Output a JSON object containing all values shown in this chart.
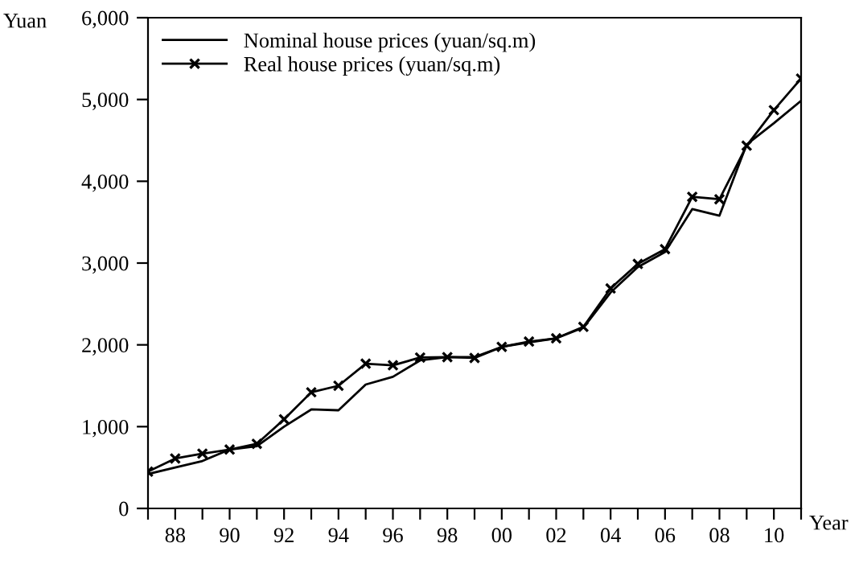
{
  "chart_data": {
    "type": "line",
    "xlabel": "Year",
    "ylabel": "Yuan",
    "x": [
      1987,
      1988,
      1989,
      1990,
      1991,
      1992,
      1993,
      1994,
      1995,
      1996,
      1997,
      1998,
      1999,
      2000,
      2001,
      2002,
      2003,
      2004,
      2005,
      2006,
      2007,
      2008,
      2009,
      2010,
      2011
    ],
    "series": [
      {
        "name": "Nominal house prices (yuan/sq.m)",
        "color": "#000000",
        "marker": "none",
        "values": [
          420,
          500,
          580,
          720,
          760,
          1000,
          1210,
          1200,
          1515,
          1610,
          1810,
          1850,
          1850,
          1975,
          2030,
          2080,
          2210,
          2640,
          2950,
          3135,
          3660,
          3580,
          4450,
          4710,
          4985
        ]
      },
      {
        "name": "Real house prices (yuan/sq.m)",
        "color": "#000000",
        "marker": "cross",
        "values": [
          450,
          610,
          670,
          720,
          790,
          1090,
          1420,
          1500,
          1770,
          1750,
          1845,
          1850,
          1840,
          1975,
          2040,
          2080,
          2220,
          2690,
          2990,
          3170,
          3810,
          3780,
          4435,
          4870,
          5255
        ]
      }
    ],
    "xlim": [
      1987,
      2011
    ],
    "xticks": [
      {
        "value": 1987,
        "label": null
      },
      {
        "value": 1988,
        "label": "88"
      },
      {
        "value": 1989,
        "label": null
      },
      {
        "value": 1990,
        "label": "90"
      },
      {
        "value": 1991,
        "label": null
      },
      {
        "value": 1992,
        "label": "92"
      },
      {
        "value": 1993,
        "label": null
      },
      {
        "value": 1994,
        "label": "94"
      },
      {
        "value": 1995,
        "label": null
      },
      {
        "value": 1996,
        "label": "96"
      },
      {
        "value": 1997,
        "label": null
      },
      {
        "value": 1998,
        "label": "98"
      },
      {
        "value": 1999,
        "label": null
      },
      {
        "value": 2000,
        "label": "00"
      },
      {
        "value": 2001,
        "label": null
      },
      {
        "value": 2002,
        "label": "02"
      },
      {
        "value": 2003,
        "label": null
      },
      {
        "value": 2004,
        "label": "04"
      },
      {
        "value": 2005,
        "label": null
      },
      {
        "value": 2006,
        "label": "06"
      },
      {
        "value": 2007,
        "label": null
      },
      {
        "value": 2008,
        "label": "08"
      },
      {
        "value": 2009,
        "label": null
      },
      {
        "value": 2010,
        "label": "10"
      },
      {
        "value": 2011,
        "label": null
      }
    ],
    "ylim": [
      0,
      6000
    ],
    "yticks": [
      {
        "value": 0,
        "label": "0"
      },
      {
        "value": 1000,
        "label": "1,000"
      },
      {
        "value": 2000,
        "label": "2,000"
      },
      {
        "value": 3000,
        "label": "3,000"
      },
      {
        "value": 4000,
        "label": "4,000"
      },
      {
        "value": 5000,
        "label": "5,000"
      },
      {
        "value": 6000,
        "label": "6,000"
      }
    ],
    "grid": false,
    "legend": "top left",
    "line_style": "solid"
  }
}
